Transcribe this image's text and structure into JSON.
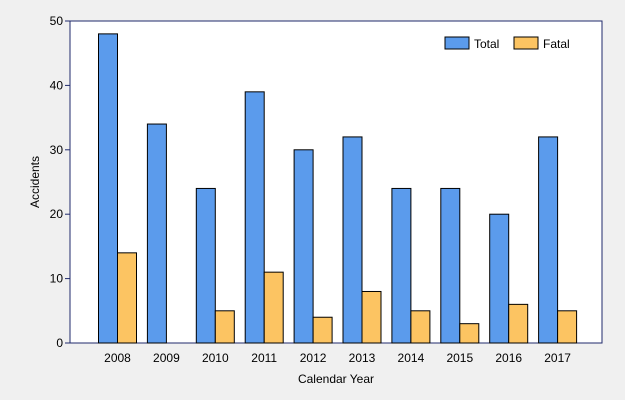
{
  "chart_data": {
    "type": "bar",
    "title": "",
    "xlabel": "Calendar Year",
    "ylabel": "Accidents",
    "ylim": [
      0,
      50
    ],
    "yticks": [
      0,
      10,
      20,
      30,
      40,
      50
    ],
    "grid": false,
    "legend_position": "top-right",
    "categories": [
      "2008",
      "2009",
      "2010",
      "2011",
      "2012",
      "2013",
      "2014",
      "2015",
      "2016",
      "2017"
    ],
    "series": [
      {
        "name": "Total",
        "color": "#5b9bec",
        "values": [
          48,
          34,
          24,
          39,
          30,
          32,
          24,
          24,
          20,
          32
        ]
      },
      {
        "name": "Fatal",
        "color": "#fcc462",
        "values": [
          14,
          0,
          5,
          11,
          4,
          8,
          5,
          3,
          6,
          5
        ]
      }
    ]
  },
  "colors": {
    "background": "#f0f0f0",
    "plot_background": "#ffffff",
    "axis": "#1f2a6b",
    "bar_outline": "#000000"
  }
}
